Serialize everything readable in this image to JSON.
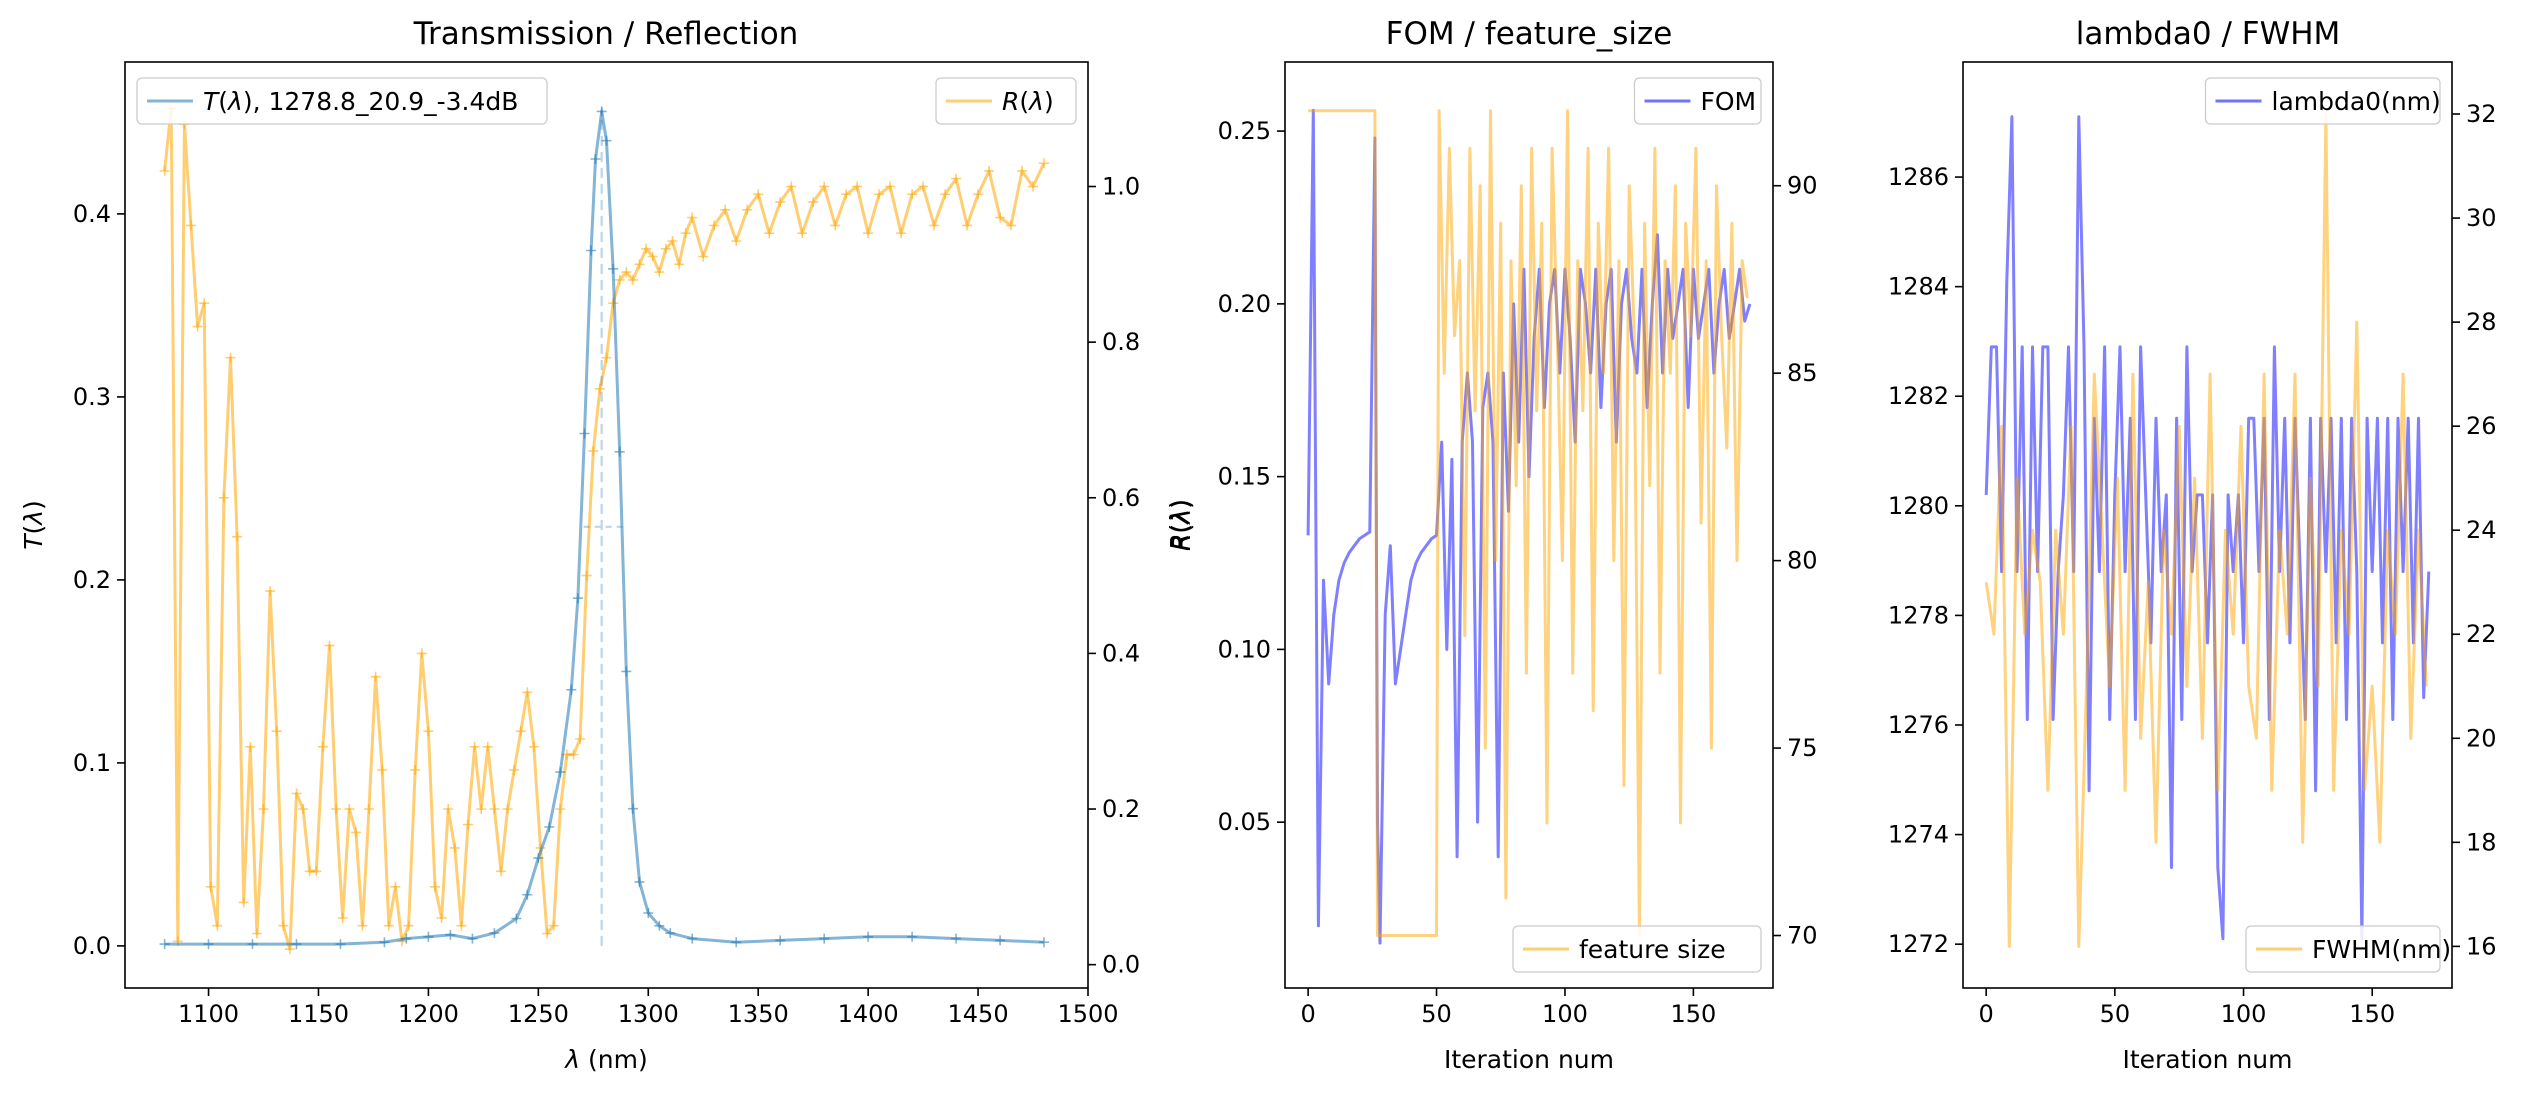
{
  "colors": {
    "transmission": "#1f77b4",
    "reflection": "#ffa500",
    "fom": "#0000ff",
    "feature_size": "#ffa500",
    "lambda0": "#0000ff",
    "fwhm": "#ffa500",
    "axis": "#000000",
    "background": "#ffffff"
  },
  "chart_data": [
    {
      "type": "line",
      "title": "Transmission / Reflection",
      "xlabel": "λ (nm)",
      "ylabel": "T(λ)",
      "y2label": "R(λ)",
      "xlim": [
        1062,
        1500
      ],
      "ylim": [
        -0.023,
        0.483
      ],
      "y2lim": [
        -0.03,
        1.16
      ],
      "xticks": [
        1100,
        1150,
        1200,
        1250,
        1300,
        1350,
        1400,
        1450,
        1500
      ],
      "yticks": [
        0.0,
        0.1,
        0.2,
        0.3,
        0.4
      ],
      "y2ticks": [
        0.0,
        0.2,
        0.4,
        0.6,
        0.8,
        1.0
      ],
      "legend_left": "T(λ), 1278.8_20.9_-3.4dB",
      "legend_right": "R(λ)",
      "legend_left_position": "upper left",
      "legend_right_position": "upper right",
      "peak_marker": {
        "x": 1278.8,
        "half_max": 0.229
      },
      "series": [
        {
          "name": "T(λ), 1278.8_20.9_-3.4dB",
          "axis": "left",
          "x": [
            1080,
            1100,
            1120,
            1140,
            1160,
            1180,
            1190,
            1200,
            1210,
            1220,
            1230,
            1240,
            1245,
            1250,
            1255,
            1260,
            1265,
            1268,
            1271,
            1274,
            1276,
            1278.8,
            1281,
            1284,
            1287,
            1290,
            1293,
            1296,
            1300,
            1305,
            1310,
            1320,
            1340,
            1360,
            1380,
            1400,
            1420,
            1440,
            1460,
            1480
          ],
          "y": [
            0.001,
            0.001,
            0.001,
            0.001,
            0.001,
            0.002,
            0.004,
            0.005,
            0.006,
            0.004,
            0.007,
            0.015,
            0.028,
            0.048,
            0.065,
            0.095,
            0.14,
            0.19,
            0.28,
            0.38,
            0.43,
            0.456,
            0.44,
            0.37,
            0.27,
            0.15,
            0.075,
            0.035,
            0.018,
            0.011,
            0.007,
            0.004,
            0.002,
            0.003,
            0.004,
            0.005,
            0.005,
            0.004,
            0.003,
            0.002
          ]
        },
        {
          "name": "R(λ)",
          "axis": "right",
          "x": [
            1080,
            1083,
            1086,
            1089,
            1092,
            1095,
            1098,
            1101,
            1104,
            1107,
            1110,
            1113,
            1116,
            1119,
            1122,
            1125,
            1128,
            1131,
            1134,
            1137,
            1140,
            1143,
            1146,
            1149,
            1152,
            1155,
            1158,
            1161,
            1164,
            1167,
            1170,
            1173,
            1176,
            1179,
            1182,
            1185,
            1188,
            1191,
            1194,
            1197,
            1200,
            1203,
            1206,
            1209,
            1212,
            1215,
            1218,
            1221,
            1224,
            1227,
            1230,
            1233,
            1236,
            1239,
            1242,
            1245,
            1248,
            1251,
            1254,
            1257,
            1260,
            1263,
            1266,
            1269,
            1272,
            1275,
            1278,
            1281,
            1284,
            1287,
            1290,
            1293,
            1296,
            1299,
            1302,
            1305,
            1308,
            1311,
            1314,
            1317,
            1320,
            1325,
            1330,
            1335,
            1340,
            1345,
            1350,
            1355,
            1360,
            1365,
            1370,
            1375,
            1380,
            1385,
            1390,
            1395,
            1400,
            1405,
            1410,
            1415,
            1420,
            1425,
            1430,
            1435,
            1440,
            1445,
            1450,
            1455,
            1460,
            1465,
            1470,
            1475,
            1480
          ],
          "y": [
            1.02,
            1.1,
            0.03,
            1.08,
            0.95,
            0.82,
            0.85,
            0.1,
            0.05,
            0.6,
            0.78,
            0.55,
            0.08,
            0.28,
            0.04,
            0.2,
            0.48,
            0.3,
            0.05,
            0.02,
            0.22,
            0.2,
            0.12,
            0.12,
            0.28,
            0.41,
            0.2,
            0.06,
            0.2,
            0.17,
            0.05,
            0.2,
            0.37,
            0.25,
            0.05,
            0.1,
            0.03,
            0.05,
            0.25,
            0.4,
            0.3,
            0.1,
            0.06,
            0.2,
            0.15,
            0.05,
            0.18,
            0.28,
            0.2,
            0.28,
            0.2,
            0.12,
            0.2,
            0.25,
            0.3,
            0.35,
            0.28,
            0.15,
            0.04,
            0.05,
            0.2,
            0.27,
            0.27,
            0.29,
            0.5,
            0.66,
            0.74,
            0.78,
            0.85,
            0.88,
            0.89,
            0.88,
            0.9,
            0.92,
            0.91,
            0.89,
            0.92,
            0.93,
            0.9,
            0.94,
            0.96,
            0.91,
            0.95,
            0.97,
            0.93,
            0.97,
            0.99,
            0.94,
            0.98,
            1.0,
            0.94,
            0.98,
            1.0,
            0.95,
            0.99,
            1.0,
            0.94,
            0.99,
            1.0,
            0.94,
            0.99,
            1.0,
            0.95,
            0.99,
            1.01,
            0.95,
            0.99,
            1.02,
            0.96,
            0.95,
            1.02,
            1.0,
            1.03
          ]
        }
      ]
    },
    {
      "type": "line",
      "title": "FOM / feature_size",
      "xlabel": "Iteration num",
      "ylabel": "R(λ)",
      "xlim": [
        -9,
        181
      ],
      "ylim": [
        0.002,
        0.27
      ],
      "y2lim": [
        68.6,
        93.3
      ],
      "xticks": [
        0,
        50,
        100,
        150
      ],
      "yticks": [
        0.05,
        0.1,
        0.15,
        0.2,
        0.25
      ],
      "y2ticks": [
        70,
        75,
        80,
        85,
        90
      ],
      "legend_top": "FOM",
      "legend_bottom": "feature size",
      "legend_top_position": "upper right",
      "legend_bottom_position": "lower right",
      "series": [
        {
          "name": "FOM",
          "axis": "left",
          "x": [
            0,
            2,
            4,
            6,
            8,
            10,
            12,
            14,
            16,
            18,
            20,
            22,
            24,
            26,
            27,
            28,
            30,
            32,
            34,
            36,
            38,
            40,
            42,
            44,
            46,
            48,
            50,
            52,
            54,
            56,
            58,
            60,
            62,
            64,
            66,
            68,
            70,
            72,
            74,
            76,
            78,
            80,
            82,
            84,
            86,
            88,
            90,
            92,
            94,
            96,
            98,
            100,
            102,
            104,
            106,
            108,
            110,
            112,
            114,
            116,
            118,
            120,
            122,
            124,
            126,
            128,
            130,
            132,
            134,
            136,
            138,
            140,
            142,
            144,
            146,
            148,
            150,
            152,
            154,
            156,
            158,
            160,
            162,
            164,
            166,
            168,
            170,
            172
          ],
          "y": [
            0.133,
            0.256,
            0.02,
            0.12,
            0.09,
            0.11,
            0.12,
            0.125,
            0.128,
            0.13,
            0.132,
            0.133,
            0.134,
            0.248,
            0.05,
            0.015,
            0.11,
            0.13,
            0.09,
            0.1,
            0.11,
            0.12,
            0.125,
            0.128,
            0.13,
            0.132,
            0.133,
            0.16,
            0.1,
            0.155,
            0.04,
            0.16,
            0.18,
            0.16,
            0.05,
            0.17,
            0.18,
            0.16,
            0.04,
            0.18,
            0.14,
            0.2,
            0.16,
            0.21,
            0.15,
            0.19,
            0.21,
            0.17,
            0.2,
            0.21,
            0.18,
            0.21,
            0.19,
            0.16,
            0.21,
            0.2,
            0.18,
            0.21,
            0.17,
            0.2,
            0.21,
            0.16,
            0.2,
            0.21,
            0.19,
            0.18,
            0.21,
            0.17,
            0.2,
            0.22,
            0.18,
            0.21,
            0.19,
            0.2,
            0.21,
            0.17,
            0.21,
            0.19,
            0.2,
            0.21,
            0.18,
            0.2,
            0.21,
            0.19,
            0.2,
            0.21,
            0.195,
            0.2
          ]
        },
        {
          "name": "feature size",
          "axis": "right",
          "x": [
            0,
            10,
            20,
            26,
            27,
            28,
            35,
            45,
            50,
            51,
            53,
            55,
            57,
            59,
            61,
            63,
            65,
            67,
            69,
            71,
            73,
            75,
            77,
            79,
            81,
            83,
            85,
            87,
            89,
            91,
            93,
            95,
            97,
            99,
            101,
            103,
            105,
            107,
            109,
            111,
            113,
            115,
            117,
            119,
            121,
            123,
            125,
            127,
            129,
            131,
            133,
            135,
            137,
            139,
            141,
            143,
            145,
            147,
            149,
            151,
            153,
            155,
            157,
            159,
            161,
            163,
            165,
            167,
            169,
            171
          ],
          "y": [
            92,
            92,
            92,
            92,
            70,
            70,
            70,
            70,
            70,
            92,
            85,
            91,
            86,
            88,
            78,
            91,
            84,
            90,
            75,
            92,
            80,
            89,
            71,
            88,
            82,
            90,
            77,
            91,
            84,
            89,
            73,
            91,
            86,
            80,
            92,
            77,
            88,
            84,
            91,
            76,
            89,
            85,
            91,
            80,
            88,
            74,
            90,
            86,
            70,
            89,
            82,
            91,
            77,
            88,
            85,
            90,
            73,
            89,
            86,
            91,
            81,
            88,
            75,
            90,
            86,
            83,
            89,
            80,
            88,
            87
          ]
        }
      ]
    },
    {
      "type": "line",
      "title": "lambda0 / FWHM",
      "xlabel": "Iteration num",
      "ylabel": "",
      "xlim": [
        -9,
        181
      ],
      "ylim": [
        1271.2,
        1288.1
      ],
      "y2lim": [
        15.2,
        33
      ],
      "xticks": [
        0,
        50,
        100,
        150
      ],
      "yticks": [
        1272,
        1274,
        1276,
        1278,
        1280,
        1282,
        1284,
        1286
      ],
      "y2ticks": [
        16,
        18,
        20,
        22,
        24,
        26,
        28,
        30,
        32
      ],
      "legend_top": "lambda0(nm)",
      "legend_bottom": "FWHM(nm)",
      "legend_top_position": "upper right",
      "legend_bottom_position": "lower right",
      "series": [
        {
          "name": "lambda0(nm)",
          "axis": "left",
          "x": [
            0,
            2,
            4,
            6,
            8,
            10,
            12,
            14,
            16,
            18,
            20,
            22,
            24,
            26,
            28,
            30,
            32,
            34,
            36,
            38,
            40,
            42,
            44,
            46,
            48,
            50,
            52,
            54,
            56,
            58,
            60,
            62,
            64,
            66,
            68,
            70,
            72,
            74,
            76,
            78,
            80,
            82,
            84,
            86,
            88,
            90,
            92,
            94,
            96,
            98,
            100,
            102,
            104,
            106,
            108,
            110,
            112,
            114,
            116,
            118,
            120,
            122,
            124,
            126,
            128,
            130,
            132,
            134,
            136,
            138,
            140,
            142,
            144,
            146,
            148,
            150,
            152,
            154,
            156,
            158,
            160,
            162,
            164,
            166,
            168,
            170,
            172
          ],
          "y": [
            1280.2,
            1282.9,
            1282.9,
            1278.8,
            1284.1,
            1287.1,
            1278.8,
            1282.9,
            1276.1,
            1282.9,
            1278.8,
            1282.9,
            1282.9,
            1276.1,
            1278.8,
            1280.2,
            1282.9,
            1278.8,
            1287.1,
            1282.9,
            1274.8,
            1281.6,
            1278.8,
            1282.9,
            1276.1,
            1280.2,
            1282.9,
            1278.8,
            1281.6,
            1276.1,
            1282.9,
            1280.2,
            1277.5,
            1281.6,
            1278.8,
            1280.2,
            1273.4,
            1281.6,
            1276.1,
            1282.9,
            1278.8,
            1280.2,
            1280.2,
            1277.5,
            1280.2,
            1273.4,
            1272.1,
            1280.2,
            1278.8,
            1280.2,
            1277.5,
            1281.6,
            1281.6,
            1278.8,
            1281.6,
            1276.1,
            1282.9,
            1278.8,
            1281.6,
            1277.5,
            1281.6,
            1278.8,
            1276.1,
            1281.6,
            1274.8,
            1281.6,
            1278.8,
            1281.6,
            1277.5,
            1281.6,
            1276.1,
            1281.6,
            1278.8,
            1272.1,
            1281.6,
            1278.8,
            1281.6,
            1277.5,
            1281.6,
            1276.1,
            1281.6,
            1278.8,
            1281.6,
            1277.5,
            1281.6,
            1276.5,
            1278.8
          ]
        },
        {
          "name": "FWHM(nm)",
          "axis": "right",
          "x": [
            0,
            3,
            6,
            9,
            12,
            15,
            18,
            21,
            24,
            27,
            30,
            33,
            36,
            39,
            42,
            45,
            48,
            51,
            54,
            57,
            60,
            63,
            66,
            69,
            72,
            75,
            78,
            81,
            84,
            87,
            90,
            93,
            96,
            99,
            102,
            105,
            108,
            111,
            114,
            117,
            120,
            123,
            126,
            129,
            132,
            135,
            138,
            141,
            144,
            147,
            150,
            153,
            156,
            159,
            162,
            165,
            168,
            171
          ],
          "y": [
            23,
            22,
            26,
            16,
            25,
            22,
            24,
            23,
            19,
            24,
            22,
            26,
            16,
            21,
            27,
            24,
            21,
            25,
            19,
            27,
            20,
            23,
            18,
            24,
            22,
            26,
            21,
            25,
            20,
            27,
            19,
            24,
            22,
            26,
            21,
            20,
            27,
            19,
            24,
            22,
            27,
            18,
            25,
            21,
            32,
            19,
            24,
            22,
            28,
            19,
            21,
            18,
            24,
            22,
            27,
            20,
            24,
            21
          ]
        }
      ]
    }
  ]
}
